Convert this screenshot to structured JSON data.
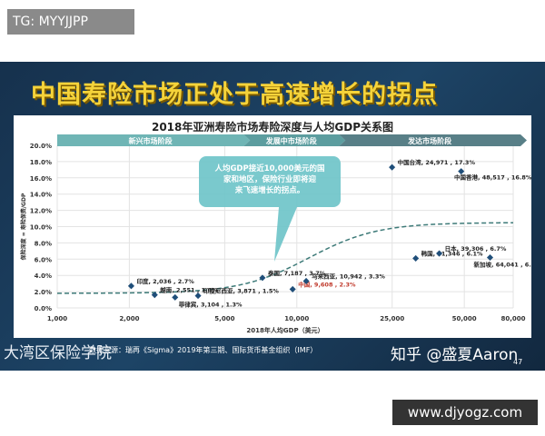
{
  "tag": "TG: MYYJJPP",
  "banner": "中国寿险市场正处于高速增长的拐点",
  "footer": {
    "source": "数据来源：瑞再《Sigma》2019年第三期、国际货币基金组织（IMF）",
    "logo": "大湾区保险学院",
    "zhihu": "知乎 @盛夏Aaron",
    "page": "47"
  },
  "site": "www.djyogz.com",
  "chart_data": {
    "type": "scatter",
    "title": "2018年亚洲寿险市场寿险深度与人均GDP关系图",
    "xlabel": "2018年人均GDP（美元）",
    "ylabel": "保险深度 = 寿险保费/GDP",
    "xscale": "log",
    "xlim": [
      1000,
      80000
    ],
    "ylim": [
      0,
      20
    ],
    "xticks": [
      "1,000",
      "2,000",
      "5,000",
      "10,000",
      "25,000",
      "50,000",
      "80,000"
    ],
    "xtickvals": [
      1000,
      2000,
      5000,
      10000,
      25000,
      50000,
      80000
    ],
    "yticks": [
      "0.0%",
      "2.0%",
      "4.0%",
      "6.0%",
      "8.0%",
      "10.0%",
      "12.0%",
      "14.0%",
      "16.0%",
      "18.0%",
      "20.0%"
    ],
    "grid": true,
    "stages": [
      "新兴市场阶段",
      "发展中市场阶段",
      "发达市场阶段"
    ],
    "callout": "人均GDP接近10,000美元的国家和地区，保险行业即将迎来飞速增长的拐点。",
    "highlight_color": "#c0392b",
    "point_color": "#1f4e79",
    "trend_color": "#3d7a78",
    "points": [
      {
        "label": "印度, 2,036 , 2.7%",
        "x": 2036,
        "y": 2.7
      },
      {
        "label": "越南, 2,551 , 1.6%",
        "x": 2551,
        "y": 1.6
      },
      {
        "label": "菲律宾, 3,104 , 1.3%",
        "x": 3104,
        "y": 1.3
      },
      {
        "label": "印度尼西亚, 3,871 , 1.5%",
        "x": 3871,
        "y": 1.5
      },
      {
        "label": "泰国, 7,187 , 3.7%",
        "x": 7187,
        "y": 3.7
      },
      {
        "label": "中国, 9,608 , 2.3%",
        "x": 9608,
        "y": 2.3,
        "highlight": true
      },
      {
        "label": "马来西亚, 10,942 , 3.3%",
        "x": 10942,
        "y": 3.3
      },
      {
        "label": "中国台湾, 24,971 , 17.3%",
        "x": 24971,
        "y": 17.3
      },
      {
        "label": "韩国, 31,346 , 6.1%",
        "x": 31346,
        "y": 6.1
      },
      {
        "label": "日本, 39,306 , 6.7%",
        "x": 39306,
        "y": 6.7
      },
      {
        "label": "中国香港, 48,517 , 16.8%",
        "x": 48517,
        "y": 16.8
      },
      {
        "label": "新加坡, 64,041 , 6.2%",
        "x": 64041,
        "y": 6.2
      }
    ]
  }
}
